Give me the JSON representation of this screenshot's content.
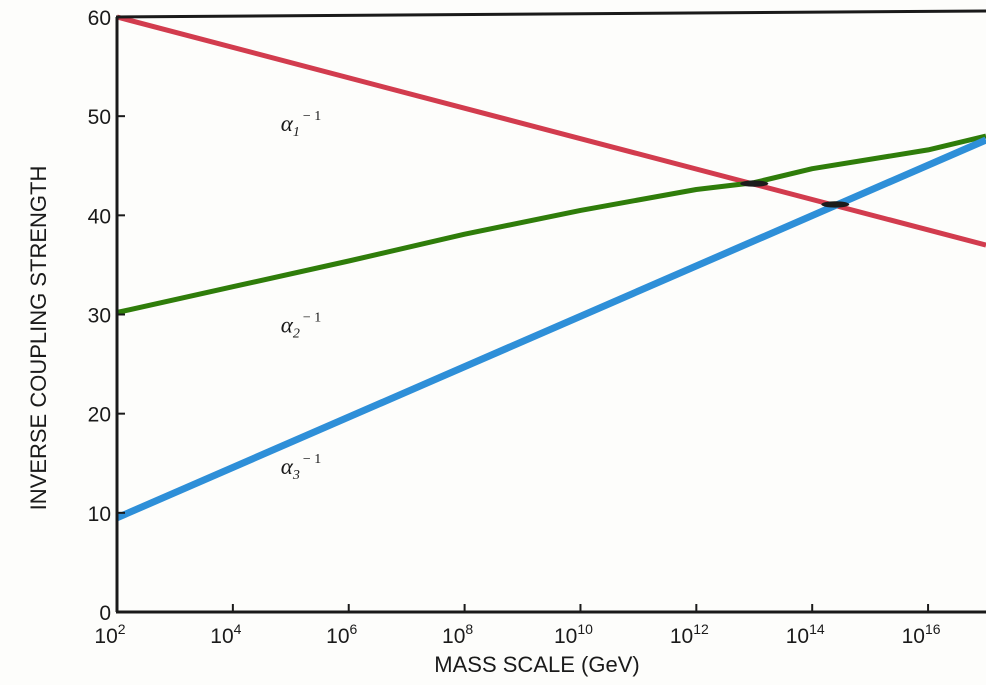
{
  "chart_data": {
    "type": "line",
    "xlabel": "MASS SCALE (GeV)",
    "ylabel": "INVERSE COUPLING STRENGTH",
    "x_scale": "log",
    "xlim": [
      100,
      1e+17
    ],
    "ylim": [
      0,
      60
    ],
    "grid": false,
    "x_ticks": [
      {
        "value": 100.0,
        "base": "10",
        "exp": "2"
      },
      {
        "value": 10000.0,
        "base": "10",
        "exp": "4"
      },
      {
        "value": 1000000.0,
        "base": "10",
        "exp": "6"
      },
      {
        "value": 100000000.0,
        "base": "10",
        "exp": "8"
      },
      {
        "value": 10000000000.0,
        "base": "10",
        "exp": "10"
      },
      {
        "value": 1000000000000.0,
        "base": "10",
        "exp": "12"
      },
      {
        "value": 100000000000000.0,
        "base": "10",
        "exp": "14"
      },
      {
        "value": 1e+16,
        "base": "10",
        "exp": "16"
      }
    ],
    "y_ticks": [
      {
        "value": 0,
        "label": "0"
      },
      {
        "value": 10,
        "label": "10"
      },
      {
        "value": 20,
        "label": "20"
      },
      {
        "value": 30,
        "label": "30"
      },
      {
        "value": 40,
        "label": "40"
      },
      {
        "value": 50,
        "label": "50"
      },
      {
        "value": 60,
        "label": "60"
      }
    ],
    "series": [
      {
        "name": "α1⁻¹",
        "label_base": "α",
        "label_sub": "1",
        "label_sup": "− 1",
        "label_at": {
          "x": 100000.0,
          "y": 48.5
        },
        "color": "#d23c4e",
        "x": [
          100.0,
          1e+17
        ],
        "y": [
          60,
          37
        ]
      },
      {
        "name": "α2⁻¹",
        "label_base": "α",
        "label_sub": "2",
        "label_sup": "− 1",
        "label_at": {
          "x": 100000.0,
          "y": 28.2
        },
        "color": "#2f7d0a",
        "x": [
          100.0,
          10000.0,
          1000000.0,
          100000000.0,
          10000000000.0,
          1000000000000.0,
          10000000000000.0,
          100000000000000.0,
          1e+16,
          1e+17
        ],
        "y": [
          30.2,
          32.8,
          35.4,
          38.1,
          40.5,
          42.6,
          43.3,
          44.7,
          46.6,
          48
        ]
      },
      {
        "name": "α3⁻¹",
        "label_base": "α",
        "label_sub": "3",
        "label_sup": "− 1",
        "label_at": {
          "x": 100000.0,
          "y": 13.9
        },
        "color": "#2e8fd8",
        "x": [
          100.0,
          1e+17
        ],
        "y": [
          9.5,
          47.6
        ]
      }
    ],
    "markers": [
      {
        "x": 10000000000000.0,
        "y": 43.2,
        "color": "#1c1c1c"
      },
      {
        "x": 250000000000000.0,
        "y": 41.1,
        "color": "#1c1c1c"
      }
    ]
  }
}
